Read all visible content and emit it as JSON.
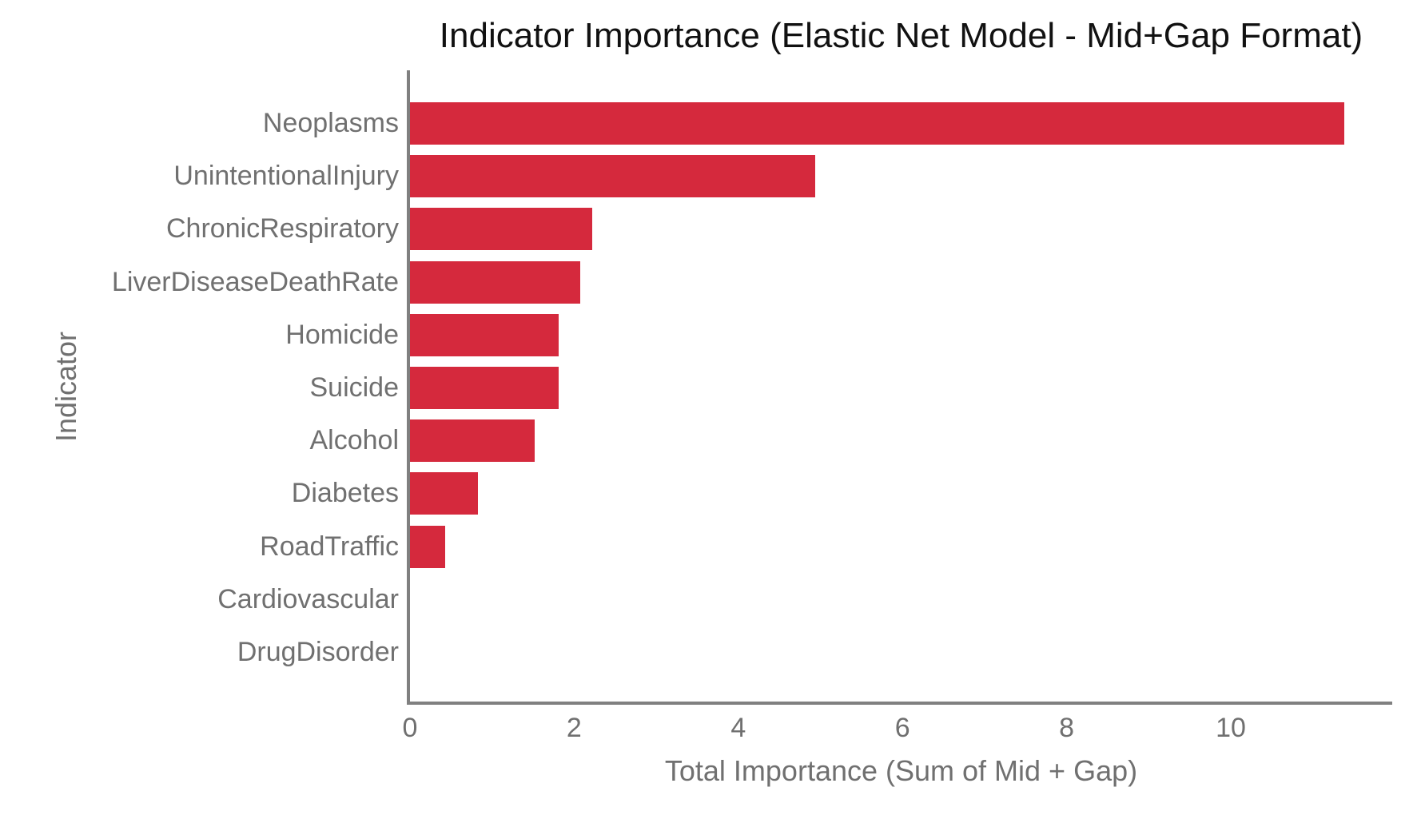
{
  "chart_data": {
    "type": "bar",
    "orientation": "horizontal",
    "title": "Indicator Importance (Elastic Net Model - Mid+Gap Format)",
    "xlabel": "Total Importance (Sum of Mid + Gap)",
    "ylabel": "Indicator",
    "categories": [
      "Neoplasms",
      "UnintentionalInjury",
      "ChronicRespiratory",
      "LiverDiseaseDeathRate",
      "Homicide",
      "Suicide",
      "Alcohol",
      "Diabetes",
      "RoadTraffic",
      "Cardiovascular",
      "DrugDisorder"
    ],
    "values": [
      11.38,
      4.94,
      2.22,
      2.07,
      1.81,
      1.81,
      1.52,
      0.83,
      0.43,
      0,
      0
    ],
    "xticks": [
      0,
      2,
      4,
      6,
      8,
      10
    ],
    "xlim": [
      0,
      11.97
    ],
    "grid": false,
    "legend": "none",
    "bar_color": "#d5293d",
    "axis_color": "#808080",
    "label_color": "#707070",
    "title_color": "#111111"
  }
}
